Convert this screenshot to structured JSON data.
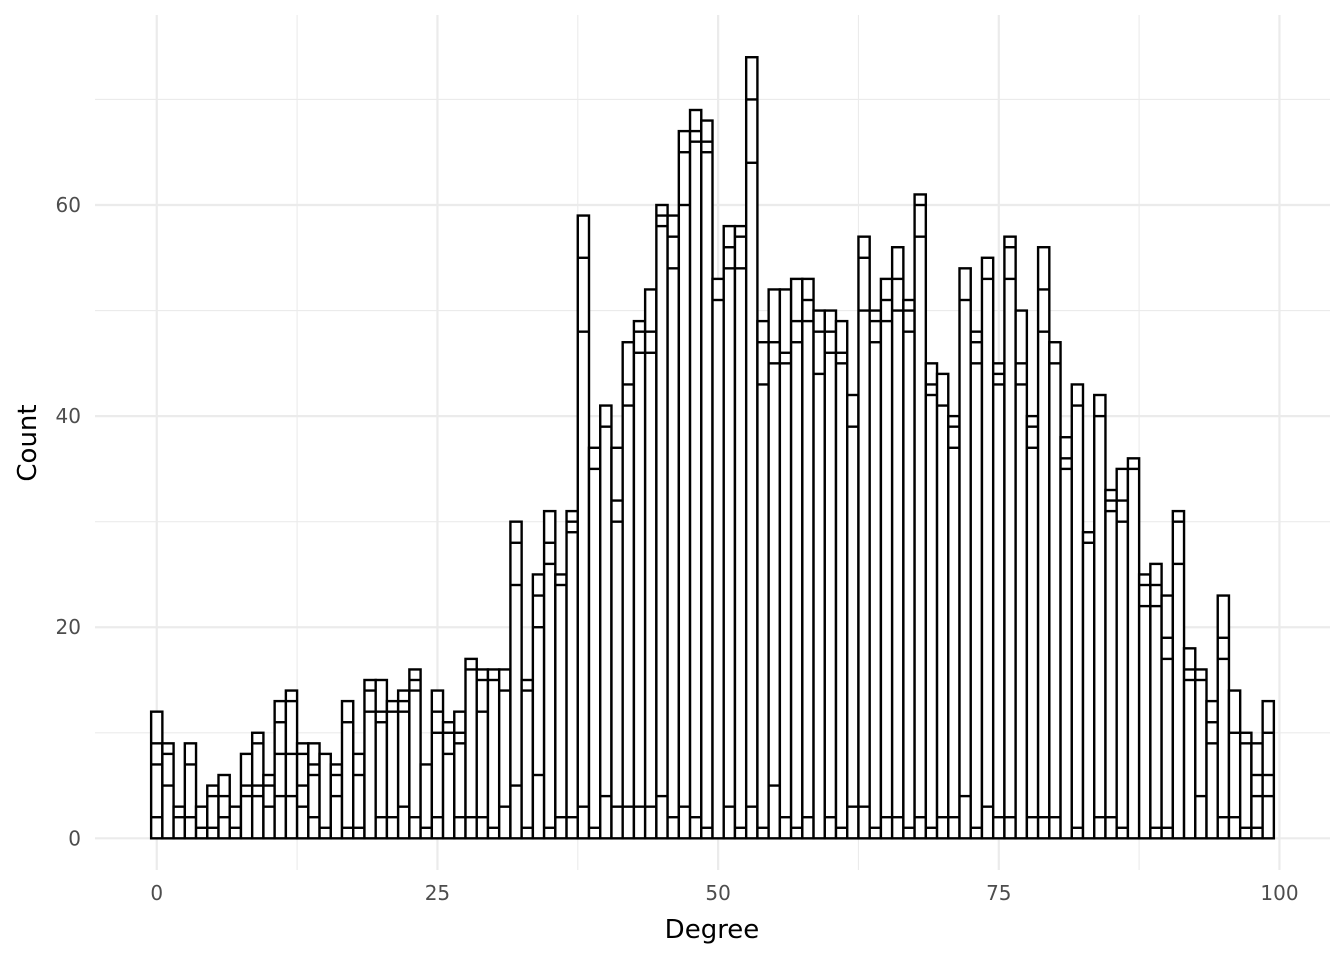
{
  "chart_data": {
    "type": "bar",
    "subtype": "stacked histogram",
    "xlabel": "Degree",
    "ylabel": "Count",
    "xlim": [
      -5.5,
      104.5
    ],
    "ylim": [
      -3,
      78
    ],
    "x_ticks": [
      0,
      25,
      50,
      75,
      100
    ],
    "y_ticks": [
      0,
      20,
      40,
      60
    ],
    "grid": true,
    "bin_width": 1,
    "x": [
      0,
      1,
      2,
      3,
      4,
      5,
      6,
      7,
      8,
      9,
      10,
      11,
      12,
      13,
      14,
      15,
      16,
      17,
      18,
      19,
      20,
      21,
      22,
      23,
      24,
      25,
      26,
      27,
      28,
      29,
      30,
      31,
      32,
      33,
      34,
      35,
      36,
      37,
      38,
      39,
      40,
      41,
      42,
      43,
      44,
      45,
      46,
      47,
      48,
      49,
      50,
      51,
      52,
      53,
      54,
      55,
      56,
      57,
      58,
      59,
      60,
      61,
      62,
      63,
      64,
      65,
      66,
      67,
      68,
      69,
      70,
      71,
      72,
      73,
      74,
      75,
      76,
      77,
      78,
      79,
      80,
      81,
      82,
      83,
      84,
      85,
      86,
      87,
      88,
      89,
      90,
      91,
      92,
      93,
      94,
      95,
      96,
      97,
      98,
      99
    ],
    "totals": [
      12,
      9,
      3,
      9,
      3,
      5,
      6,
      3,
      8,
      10,
      6,
      13,
      14,
      9,
      9,
      8,
      7,
      13,
      8,
      15,
      15,
      13,
      14,
      16,
      7,
      14,
      11,
      12,
      17,
      16,
      16,
      16,
      30,
      15,
      25,
      31,
      25,
      31,
      59,
      37,
      41,
      37,
      47,
      49,
      52,
      60,
      59,
      67,
      69,
      68,
      53,
      58,
      58,
      74,
      49,
      52,
      52,
      53,
      53,
      50,
      50,
      49,
      42,
      57,
      50,
      53,
      56,
      51,
      61,
      45,
      44,
      40,
      54,
      48,
      55,
      45,
      57,
      50,
      40,
      56,
      47,
      38,
      43,
      29,
      42,
      33,
      35,
      36,
      25,
      26,
      23,
      31,
      18,
      16,
      13,
      23,
      14,
      10,
      9,
      13
    ],
    "boundaries": [
      [
        2,
        7,
        9
      ],
      [
        5,
        8
      ],
      [
        2
      ],
      [
        2,
        7
      ],
      [
        1
      ],
      [
        1,
        4
      ],
      [
        2,
        4
      ],
      [
        1
      ],
      [
        4,
        5
      ],
      [
        4,
        5,
        9
      ],
      [
        3,
        5
      ],
      [
        4,
        8,
        11
      ],
      [
        4,
        8,
        13
      ],
      [
        3,
        5,
        8
      ],
      [
        2,
        6,
        7
      ],
      [
        1
      ],
      [
        4,
        6
      ],
      [
        1,
        11
      ],
      [
        1,
        6
      ],
      [
        12,
        14
      ],
      [
        2,
        11,
        12
      ],
      [
        2,
        12
      ],
      [
        3,
        12,
        13
      ],
      [
        2,
        14,
        15
      ],
      [
        1
      ],
      [
        2,
        10,
        12
      ],
      [
        8,
        10
      ],
      [
        2,
        9,
        10
      ],
      [
        2,
        16
      ],
      [
        2,
        12,
        15
      ],
      [
        1,
        15
      ],
      [
        3,
        14
      ],
      [
        5,
        24,
        28
      ],
      [
        1,
        14
      ],
      [
        6,
        20,
        23
      ],
      [
        1,
        26,
        28
      ],
      [
        2,
        24
      ],
      [
        2,
        29,
        30
      ],
      [
        3,
        48,
        55
      ],
      [
        1,
        35
      ],
      [
        4,
        39
      ],
      [
        3,
        30,
        32
      ],
      [
        3,
        41,
        43
      ],
      [
        3,
        46,
        48
      ],
      [
        3,
        46,
        48
      ],
      [
        4,
        58,
        59
      ],
      [
        2,
        54,
        57
      ],
      [
        3,
        60,
        65
      ],
      [
        2,
        66,
        67
      ],
      [
        1,
        65,
        66
      ],
      [
        51
      ],
      [
        3,
        54,
        56
      ],
      [
        1,
        54,
        57
      ],
      [
        3,
        64,
        70
      ],
      [
        1,
        43,
        47
      ],
      [
        5,
        45,
        47
      ],
      [
        2,
        45,
        46
      ],
      [
        1,
        47,
        49
      ],
      [
        2,
        49,
        51
      ],
      [
        44,
        48
      ],
      [
        2,
        46,
        48
      ],
      [
        1,
        45,
        46
      ],
      [
        3,
        39
      ],
      [
        3,
        50,
        55
      ],
      [
        1,
        47,
        49
      ],
      [
        2,
        49,
        51
      ],
      [
        2,
        50,
        53
      ],
      [
        1,
        48,
        50
      ],
      [
        2,
        57,
        60
      ],
      [
        1,
        42,
        43
      ],
      [
        2,
        41
      ],
      [
        2,
        37,
        39
      ],
      [
        4,
        51
      ],
      [
        1,
        45,
        47
      ],
      [
        3,
        53
      ],
      [
        2,
        43,
        44
      ],
      [
        2,
        53,
        56
      ],
      [
        43,
        45
      ],
      [
        2,
        37,
        39
      ],
      [
        2,
        48,
        52
      ],
      [
        2,
        45
      ],
      [
        35,
        36
      ],
      [
        1,
        41
      ],
      [
        28
      ],
      [
        2,
        40
      ],
      [
        2,
        31,
        32
      ],
      [
        1,
        30,
        32
      ],
      [
        35
      ],
      [
        22,
        24
      ],
      [
        1,
        22,
        24
      ],
      [
        1,
        17,
        19
      ],
      [
        26,
        30
      ],
      [
        15,
        16
      ],
      [
        4,
        15
      ],
      [
        9,
        11
      ],
      [
        2,
        17,
        19
      ],
      [
        2,
        10
      ],
      [
        1,
        9
      ],
      [
        1,
        4,
        6
      ],
      [
        4,
        6,
        10
      ]
    ]
  }
}
